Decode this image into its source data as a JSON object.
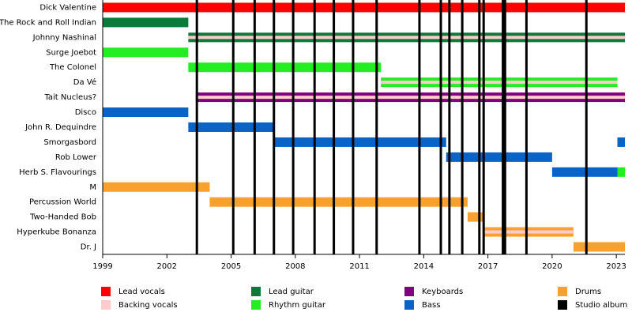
{
  "chart_data": {
    "type": "timeline",
    "categories": [
      "Dick Valentine",
      "The Rock and Roll Indian",
      "Johnny Nashinal",
      "Surge Joebot",
      "The Colonel",
      "Da Vé",
      "Tait Nucleus?",
      "Disco",
      "John R. Dequindre",
      "Smorgasbord",
      "Rob Lower",
      "Herb S. Flavourings",
      "M",
      "Percussion World",
      "Two-Handed Bob",
      "Hyperkube Bonanza",
      "Dr. J"
    ],
    "xlim": [
      1999,
      2023.4
    ],
    "xticks": [
      1999,
      2002,
      2005,
      2008,
      2011,
      2014,
      2017,
      2020,
      2023
    ],
    "series": [
      {
        "name": "Lead vocals",
        "color": "#ff0000",
        "segments": [
          {
            "category": "Dick Valentine",
            "start": 1999,
            "end": 2023.4
          }
        ]
      },
      {
        "name": "Backing vocals",
        "color": "#ffcccc",
        "stripe": true,
        "segments": [
          {
            "category": "Johnny Nashinal",
            "start": 2003.0,
            "end": 2023.4
          },
          {
            "category": "Da Vé",
            "start": 2012.0,
            "end": 2023.05
          },
          {
            "category": "Tait Nucleus?",
            "start": 2003.35,
            "end": 2023.4
          },
          {
            "category": "Hyperkube Bonanza",
            "start": 2016.8,
            "end": 2021.0
          }
        ]
      },
      {
        "name": "Lead guitar",
        "color": "#0b7a3b",
        "segments": [
          {
            "category": "The Rock and Roll Indian",
            "start": 1999,
            "end": 2003.0
          },
          {
            "category": "Johnny Nashinal",
            "start": 2003.0,
            "end": 2023.4
          }
        ]
      },
      {
        "name": "Rhythm guitar",
        "color": "#22ee22",
        "segments": [
          {
            "category": "Surge Joebot",
            "start": 1999,
            "end": 2003.0
          },
          {
            "category": "The Colonel",
            "start": 2003.0,
            "end": 2012.0
          },
          {
            "category": "Da Vé",
            "start": 2012.0,
            "end": 2023.05
          },
          {
            "category": "Herb S. Flavourings",
            "start": 2023.05,
            "end": 2023.4
          }
        ]
      },
      {
        "name": "Keyboards",
        "color": "#800080",
        "segments": [
          {
            "category": "Tait Nucleus?",
            "start": 2003.35,
            "end": 2023.4
          }
        ]
      },
      {
        "name": "Bass",
        "color": "#0a64c8",
        "segments": [
          {
            "category": "Disco",
            "start": 1999,
            "end": 2003.0
          },
          {
            "category": "John R. Dequindre",
            "start": 2003.0,
            "end": 2007.0
          },
          {
            "category": "Smorgasbord",
            "start": 2007.0,
            "end": 2015.05
          },
          {
            "category": "Rob Lower",
            "start": 2015.05,
            "end": 2020.0
          },
          {
            "category": "Herb S. Flavourings",
            "start": 2020.0,
            "end": 2023.05
          },
          {
            "category": "Smorgasbord",
            "start": 2023.05,
            "end": 2023.4
          }
        ]
      },
      {
        "name": "Drums",
        "color": "#f9a12f",
        "segments": [
          {
            "category": "M",
            "start": 1999,
            "end": 2004.0
          },
          {
            "category": "Percussion World",
            "start": 2004.0,
            "end": 2016.05
          },
          {
            "category": "Two-Handed Bob",
            "start": 2016.05,
            "end": 2016.8
          },
          {
            "category": "Hyperkube Bonanza",
            "start": 2016.8,
            "end": 2021.0
          },
          {
            "category": "Dr. J",
            "start": 2021.0,
            "end": 2023.4
          }
        ]
      }
    ],
    "albums": {
      "name": "Studio album",
      "color": "#000000",
      "x": [
        2003.4,
        2005.1,
        2006.1,
        2007.0,
        2007.9,
        2008.9,
        2009.8,
        2010.7,
        2011.8,
        2013.8,
        2014.8,
        2015.2,
        2015.8,
        2016.6,
        2016.8,
        2017.7,
        2017.8,
        2018.8,
        2021.6
      ]
    }
  }
}
